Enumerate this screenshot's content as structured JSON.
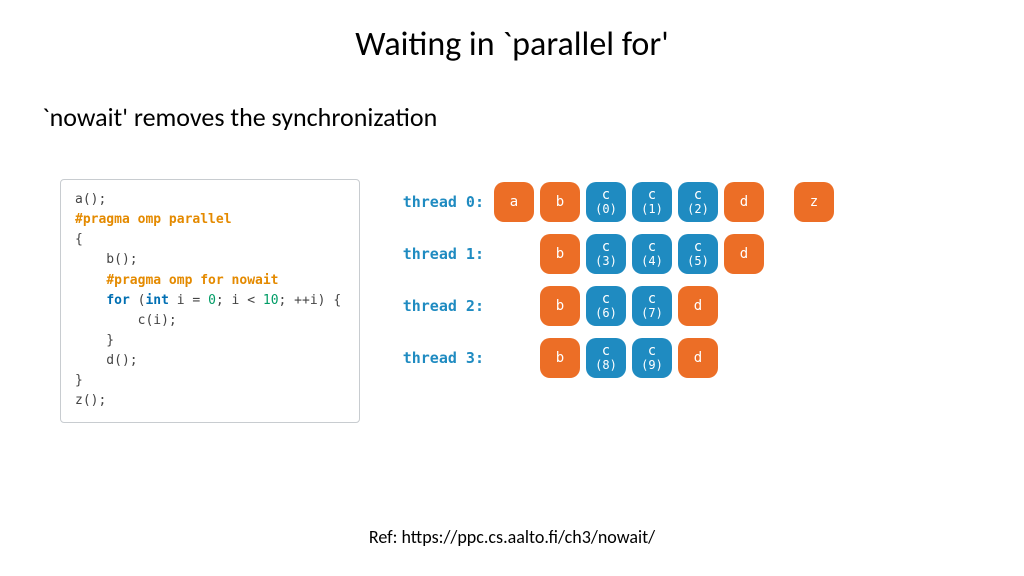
{
  "title": "Waiting in `parallel for'",
  "subtitle": "`nowait' removes the synchronization",
  "ref": "Ref: https://ppc.cs.aalto.fi/ch3/nowait/",
  "colors": {
    "orange": "#ec6e26",
    "blue": "#1f8bc1",
    "code_border": "#c8ccd0",
    "code_plain": "#444444",
    "code_pragma": "#e48a00",
    "code_kw": "#006fb3",
    "code_num": "#009c66",
    "label": "#1f8bc1"
  },
  "code": [
    [
      {
        "t": "a();",
        "c": "plain"
      }
    ],
    [
      {
        "t": "#pragma omp parallel",
        "c": "pragma"
      }
    ],
    [
      {
        "t": "{",
        "c": "plain"
      }
    ],
    [
      {
        "t": "    b();",
        "c": "plain"
      }
    ],
    [
      {
        "t": "    ",
        "c": "plain"
      },
      {
        "t": "#pragma omp for nowait",
        "c": "pragma"
      }
    ],
    [
      {
        "t": "    ",
        "c": "plain"
      },
      {
        "t": "for",
        "c": "kw"
      },
      {
        "t": " (",
        "c": "plain"
      },
      {
        "t": "int",
        "c": "kw"
      },
      {
        "t": " i = ",
        "c": "plain"
      },
      {
        "t": "0",
        "c": "num"
      },
      {
        "t": "; i < ",
        "c": "plain"
      },
      {
        "t": "10",
        "c": "num"
      },
      {
        "t": "; ++i) {",
        "c": "plain"
      }
    ],
    [
      {
        "t": "        c(i);",
        "c": "plain"
      }
    ],
    [
      {
        "t": "    }",
        "c": "plain"
      }
    ],
    [
      {
        "t": "    d();",
        "c": "plain"
      }
    ],
    [
      {
        "t": "}",
        "c": "plain"
      }
    ],
    [
      {
        "t": "z();",
        "c": "plain"
      }
    ]
  ],
  "threads": [
    {
      "label": "thread 0:",
      "indent": 0,
      "cells": [
        {
          "text": "a",
          "color": "orange"
        },
        {
          "text": "b",
          "color": "orange"
        },
        {
          "text": "c",
          "sub": "(0)",
          "color": "blue"
        },
        {
          "text": "c",
          "sub": "(1)",
          "color": "blue"
        },
        {
          "text": "c",
          "sub": "(2)",
          "color": "blue"
        },
        {
          "text": "d",
          "color": "orange"
        },
        {
          "text": "z",
          "color": "orange",
          "gap_before": true
        }
      ]
    },
    {
      "label": "thread 1:",
      "indent": 1,
      "cells": [
        {
          "text": "b",
          "color": "orange"
        },
        {
          "text": "c",
          "sub": "(3)",
          "color": "blue"
        },
        {
          "text": "c",
          "sub": "(4)",
          "color": "blue"
        },
        {
          "text": "c",
          "sub": "(5)",
          "color": "blue"
        },
        {
          "text": "d",
          "color": "orange"
        }
      ]
    },
    {
      "label": "thread 2:",
      "indent": 1,
      "cells": [
        {
          "text": "b",
          "color": "orange"
        },
        {
          "text": "c",
          "sub": "(6)",
          "color": "blue"
        },
        {
          "text": "c",
          "sub": "(7)",
          "color": "blue"
        },
        {
          "text": "d",
          "color": "orange"
        }
      ]
    },
    {
      "label": "thread 3:",
      "indent": 1,
      "cells": [
        {
          "text": "b",
          "color": "orange"
        },
        {
          "text": "c",
          "sub": "(8)",
          "color": "blue"
        },
        {
          "text": "c",
          "sub": "(9)",
          "color": "blue"
        },
        {
          "text": "d",
          "color": "orange"
        }
      ]
    }
  ]
}
